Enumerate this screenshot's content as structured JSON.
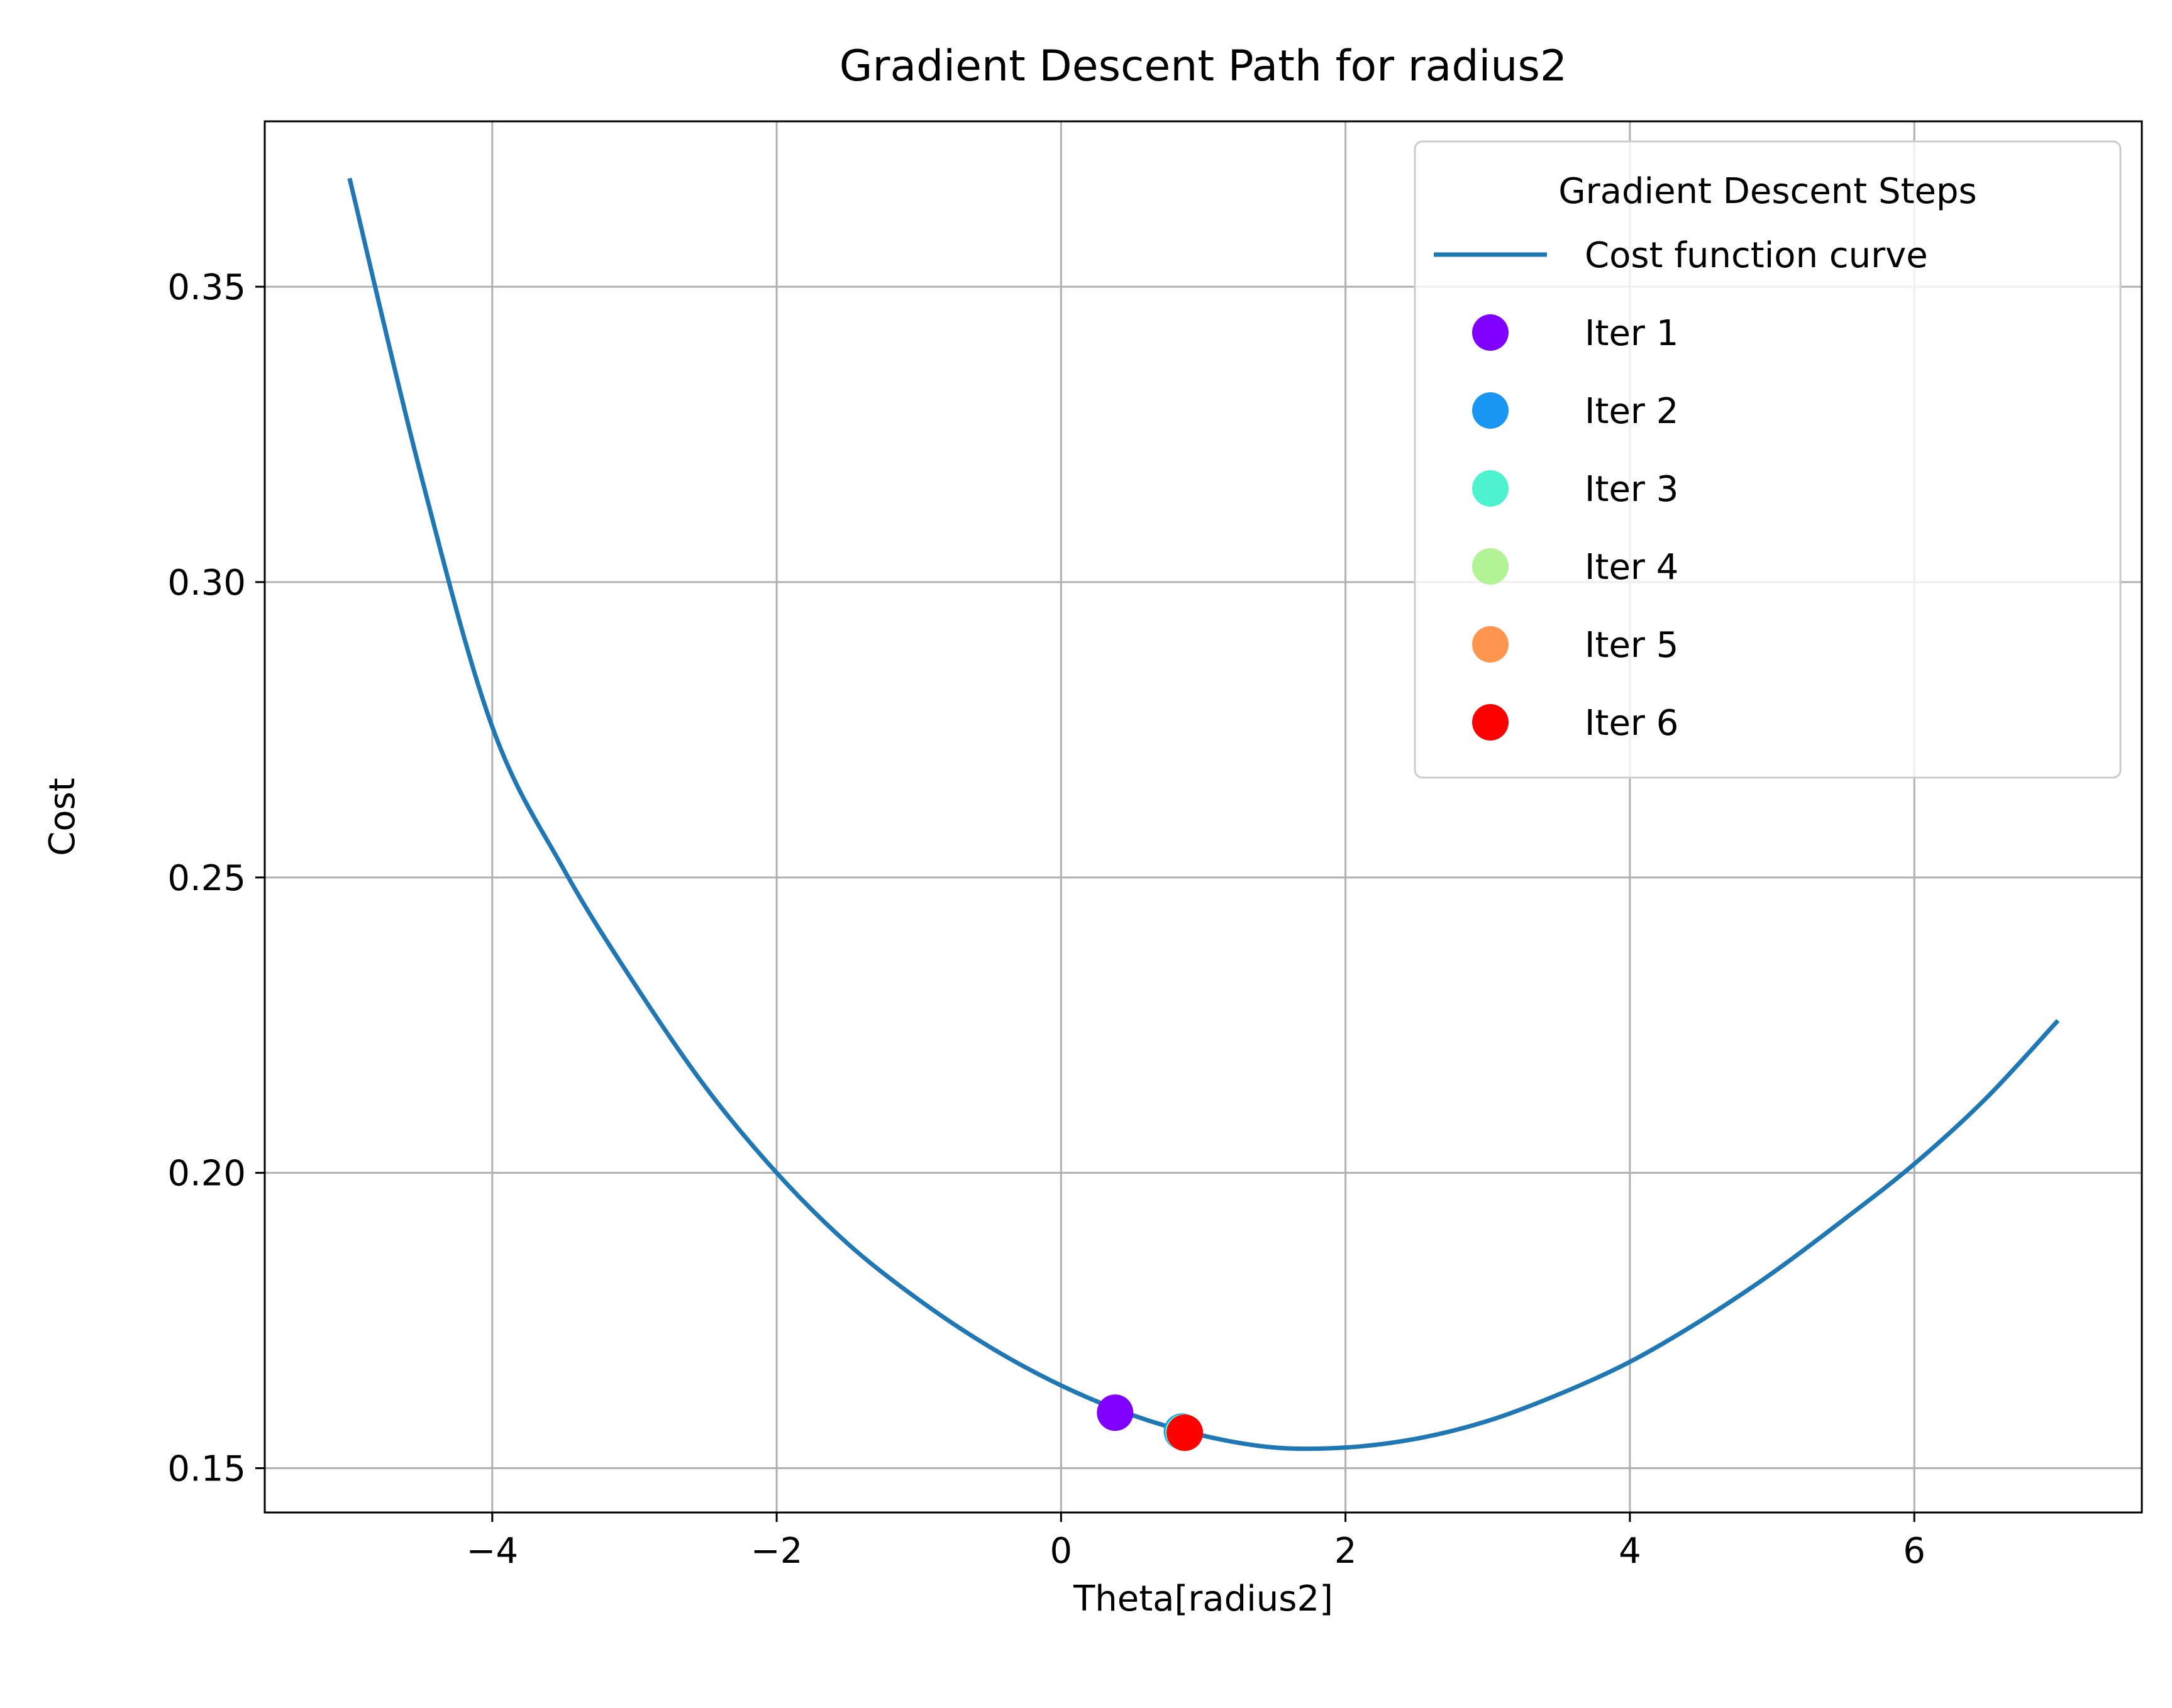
{
  "chart_data": {
    "type": "line",
    "title": "Gradient Descent Path for radius2",
    "xlabel": "Theta[radius2]",
    "ylabel": "Cost",
    "xlim": [
      -5.6,
      7.6
    ],
    "ylim": [
      0.1425,
      0.378
    ],
    "grid": true,
    "x_ticks": [
      -4,
      -2,
      0,
      2,
      4,
      6
    ],
    "x_tick_labels": [
      "−4",
      "−2",
      "0",
      "2",
      "4",
      "6"
    ],
    "y_ticks": [
      0.15,
      0.2,
      0.25,
      0.3,
      0.35
    ],
    "y_tick_labels": [
      "0.15",
      "0.20",
      "0.25",
      "0.30",
      "0.35"
    ],
    "curve": {
      "name": "Cost function curve",
      "color": "#1f77b4",
      "x": [
        -5,
        -4.5,
        -4,
        -3.5,
        -3,
        -2.5,
        -2,
        -1.5,
        -1,
        -0.5,
        0,
        0.5,
        1,
        1.5,
        2,
        2.5,
        3,
        3.5,
        4,
        4.5,
        5,
        5.5,
        6,
        6.5,
        7
      ],
      "y": [
        0.368,
        0.318,
        0.2755,
        0.2515,
        0.232,
        0.2145,
        0.2,
        0.188,
        0.1785,
        0.1705,
        0.164,
        0.159,
        0.1555,
        0.1535,
        0.1535,
        0.155,
        0.158,
        0.1625,
        0.168,
        0.175,
        0.183,
        0.192,
        0.2015,
        0.2125,
        0.2255
      ]
    },
    "legend": {
      "title": "Gradient Descent Steps",
      "position": "top-right"
    },
    "iterations": [
      {
        "name": "Iter 1",
        "x": 0.38,
        "y": 0.1594,
        "color": "#8000ff"
      },
      {
        "name": "Iter 2",
        "x": 0.85,
        "y": 0.1562,
        "color": "#1996f3"
      },
      {
        "name": "Iter 3",
        "x": 0.86,
        "y": 0.1561,
        "color": "#4df3ce"
      },
      {
        "name": "Iter 4",
        "x": 0.87,
        "y": 0.156,
        "color": "#b2f396"
      },
      {
        "name": "Iter 5",
        "x": 0.87,
        "y": 0.156,
        "color": "#ff964f"
      },
      {
        "name": "Iter 6",
        "x": 0.87,
        "y": 0.156,
        "color": "#ff0000"
      }
    ]
  }
}
